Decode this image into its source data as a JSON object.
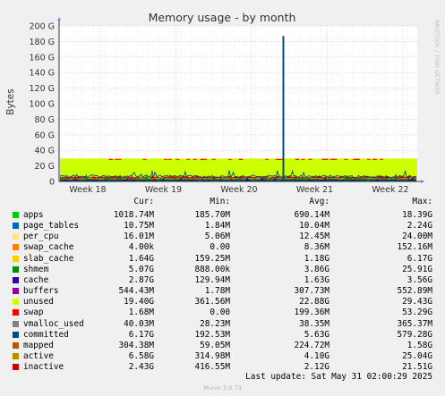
{
  "chart_data": {
    "type": "area",
    "title": "Memory usage - by month",
    "ylabel": "Bytes",
    "side_label": "RRDTOOL / TOBI OETIKER",
    "ylim": [
      0,
      200
    ],
    "y_unit": "G",
    "y_ticks": [
      {
        "value": 0,
        "label": "0"
      },
      {
        "value": 20,
        "label": "20 G"
      },
      {
        "value": 40,
        "label": "40 G"
      },
      {
        "value": 60,
        "label": "60 G"
      },
      {
        "value": 80,
        "label": "80 G"
      },
      {
        "value": 100,
        "label": "100 G"
      },
      {
        "value": 120,
        "label": "120 G"
      },
      {
        "value": 140,
        "label": "140 G"
      },
      {
        "value": 160,
        "label": "160 G"
      },
      {
        "value": 180,
        "label": "180 G"
      },
      {
        "value": 200,
        "label": "200 G"
      }
    ],
    "x_ticks": [
      "Week 18",
      "Week 19",
      "Week 20",
      "Week 21",
      "Week 22"
    ],
    "band": {
      "color": "#ccff00",
      "from": 0,
      "to": 29.5
    },
    "peak": {
      "week_position": 20.42,
      "value": 187
    },
    "series": [
      {
        "name": "apps",
        "color": "#00cc00",
        "cur": "1018.74M",
        "min": "185.70M",
        "avg": "690.14M",
        "max": "18.39G"
      },
      {
        "name": "page_tables",
        "color": "#0066b3",
        "cur": "10.75M",
        "min": "1.84M",
        "avg": "10.04M",
        "max": "2.24G"
      },
      {
        "name": "per_cpu",
        "color": "#ffe680",
        "cur": "16.01M",
        "min": "5.06M",
        "avg": "12.45M",
        "max": "24.00M"
      },
      {
        "name": "swap_cache",
        "color": "#ff8000",
        "cur": "4.00k",
        "min": "0.00",
        "avg": "8.36M",
        "max": "152.16M"
      },
      {
        "name": "slab_cache",
        "color": "#ffcc00",
        "cur": "1.64G",
        "min": "159.25M",
        "avg": "1.18G",
        "max": "6.17G"
      },
      {
        "name": "shmem",
        "color": "#008f00",
        "cur": "5.07G",
        "min": "888.00k",
        "avg": "3.86G",
        "max": "25.91G"
      },
      {
        "name": "cache",
        "color": "#330099",
        "cur": "2.87G",
        "min": "129.94M",
        "avg": "1.63G",
        "max": "3.56G"
      },
      {
        "name": "buffers",
        "color": "#990099",
        "cur": "544.43M",
        "min": "1.78M",
        "avg": "307.73M",
        "max": "552.89M"
      },
      {
        "name": "unused",
        "color": "#ccff00",
        "cur": "19.40G",
        "min": "361.56M",
        "avg": "22.88G",
        "max": "29.43G"
      },
      {
        "name": "swap",
        "color": "#ff0000",
        "cur": "1.68M",
        "min": "0.00",
        "avg": "199.36M",
        "max": "53.29G"
      },
      {
        "name": "vmalloc_used",
        "color": "#808080",
        "cur": "40.03M",
        "min": "28.23M",
        "avg": "38.35M",
        "max": "365.37M"
      },
      {
        "name": "committed",
        "color": "#004d80",
        "cur": "6.17G",
        "min": "192.53M",
        "avg": "5.63G",
        "max": "579.28G"
      },
      {
        "name": "mapped",
        "color": "#b35a00",
        "cur": "304.38M",
        "min": "59.05M",
        "avg": "224.72M",
        "max": "1.58G"
      },
      {
        "name": "active",
        "color": "#b38f00",
        "cur": "6.58G",
        "min": "314.98M",
        "avg": "4.10G",
        "max": "25.04G"
      },
      {
        "name": "inactive",
        "color": "#cc0000",
        "cur": "2.43G",
        "min": "416.55M",
        "avg": "2.12G",
        "max": "21.51G"
      }
    ],
    "legend_headers": {
      "cur": "Cur:",
      "min": "Min:",
      "avg": "Avg:",
      "max": "Max:"
    },
    "grid": true
  },
  "last_update": "Last update: Sat May 31 02:00:29 2025",
  "footer": "Munin 2.0.73"
}
